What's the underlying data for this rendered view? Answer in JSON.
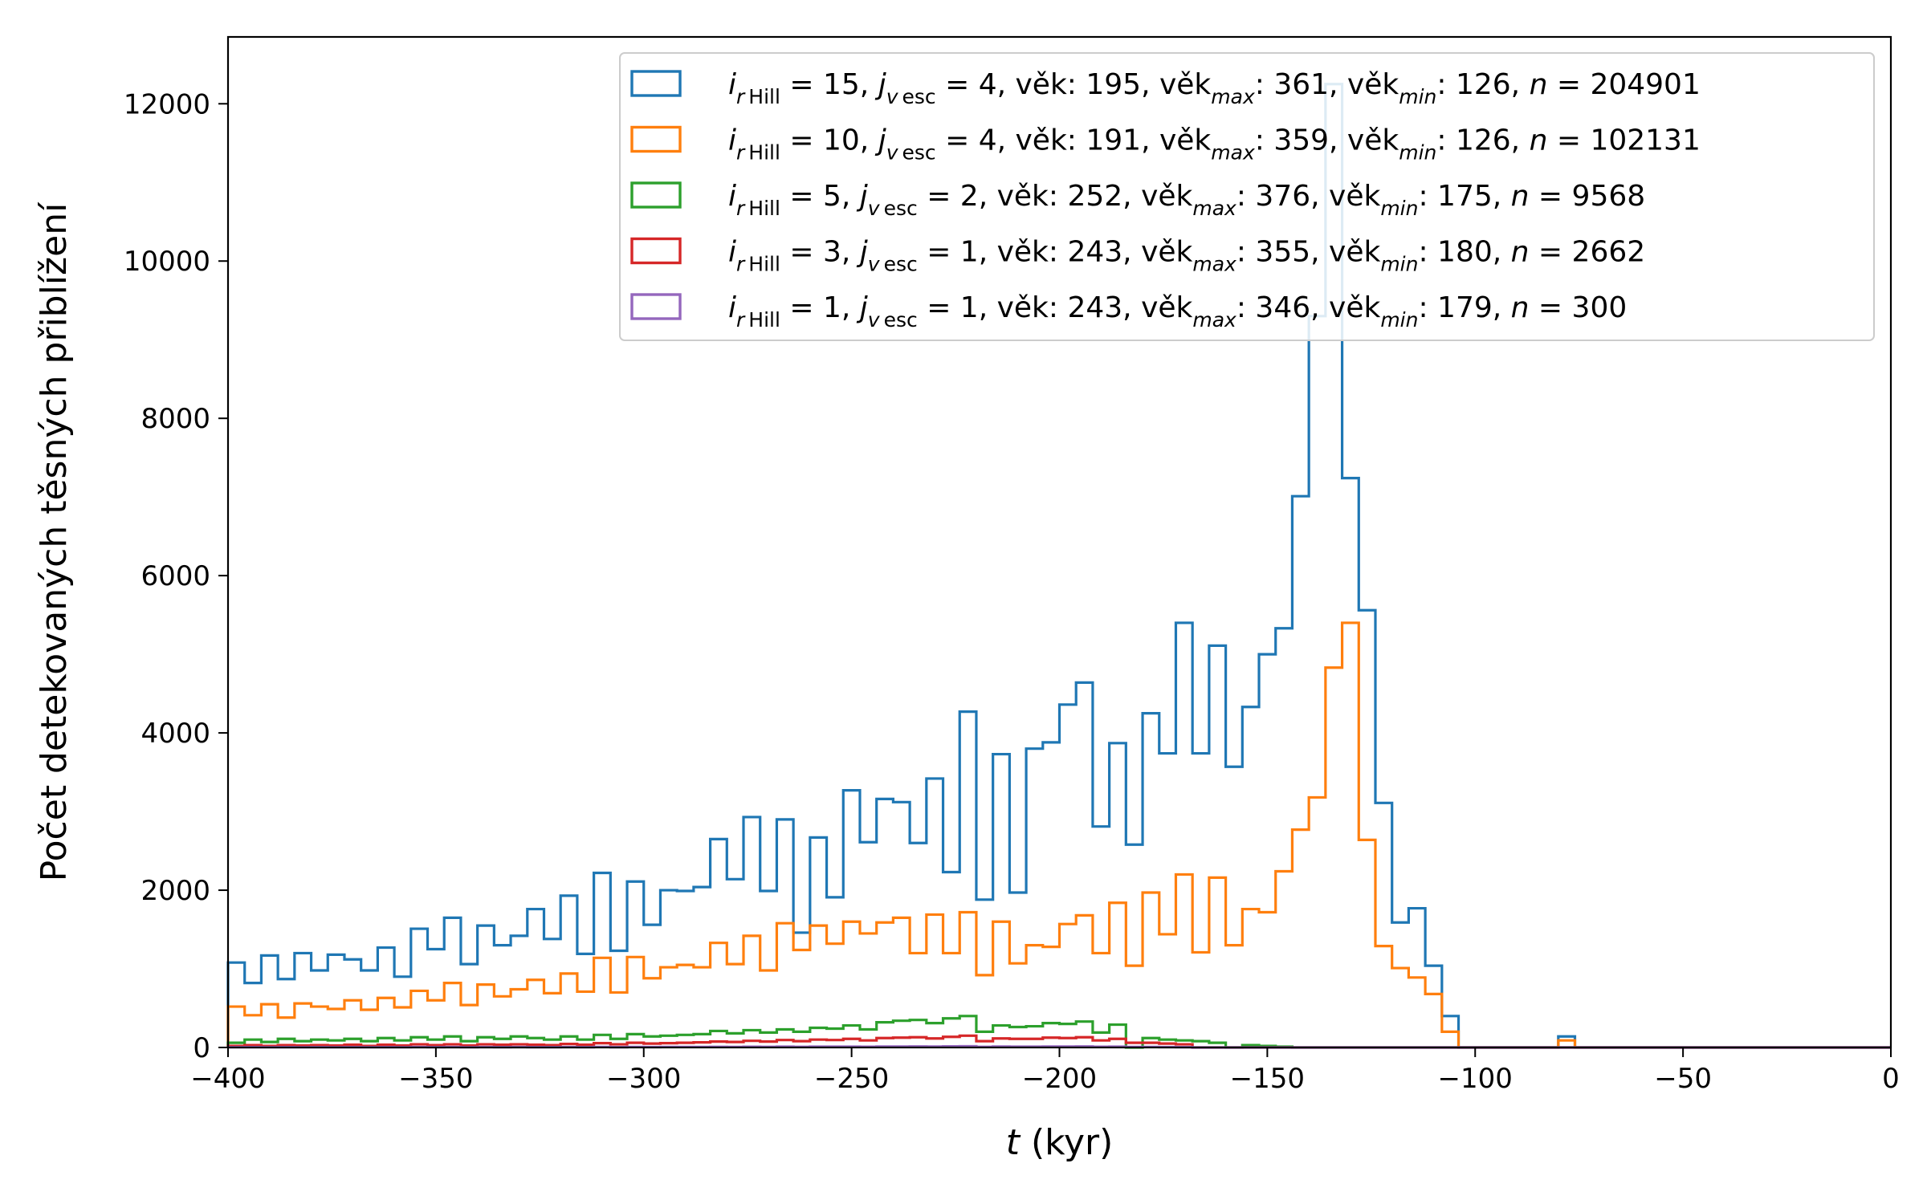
{
  "chart_data": {
    "type": "histogram-step",
    "xlabel": {
      "var": "t",
      "rest": " (kyr)"
    },
    "ylabel": "Počet detekovaných těsných přiblížení",
    "xlim": [
      -400,
      0
    ],
    "ylim": [
      0,
      12850
    ],
    "x_ticks": [
      -400,
      -350,
      -300,
      -250,
      -200,
      -150,
      -100,
      -50,
      0
    ],
    "x_tick_labels": [
      "−400",
      "−350",
      "−300",
      "−250",
      "−200",
      "−150",
      "−100",
      "−50",
      "0"
    ],
    "y_ticks": [
      0,
      2000,
      4000,
      6000,
      8000,
      10000,
      12000
    ],
    "y_tick_labels": [
      "0",
      "2000",
      "4000",
      "6000",
      "8000",
      "10000",
      "12000"
    ],
    "bin_start": -400,
    "bin_width": 4,
    "grid": false,
    "legend_position": "top-right",
    "series": [
      {
        "color": "#1f77b4",
        "legend": {
          "i": "15",
          "j": "4",
          "vek": "195",
          "vek_max": "361",
          "vek_min": "126",
          "n": "204901"
        },
        "values": [
          1080,
          820,
          1170,
          870,
          1200,
          980,
          1180,
          1120,
          980,
          1270,
          900,
          1510,
          1250,
          1650,
          1060,
          1550,
          1300,
          1420,
          1760,
          1380,
          1930,
          1190,
          2220,
          1230,
          2110,
          1560,
          2000,
          1990,
          2040,
          2650,
          2140,
          2930,
          1990,
          2900,
          1460,
          2670,
          1910,
          3270,
          2610,
          3160,
          3120,
          2600,
          3420,
          2230,
          4270,
          1880,
          3730,
          1970,
          3800,
          3880,
          4360,
          4640,
          2810,
          3870,
          2580,
          4250,
          3740,
          5400,
          3740,
          5110,
          3570,
          4330,
          5000,
          5330,
          7010,
          9300,
          12250,
          7240,
          5560,
          3110,
          1590,
          1770,
          1040,
          400,
          0,
          0,
          0,
          0,
          0,
          0,
          140,
          0,
          0,
          0,
          0,
          0,
          0,
          0,
          0,
          0,
          0,
          0,
          0,
          0,
          0,
          0,
          0,
          0,
          0,
          0
        ],
        "label_suffix": "rHill"
      },
      {
        "color": "#ff7f0e",
        "legend": {
          "i": "10",
          "j": "4",
          "vek": "191",
          "vek_max": "359",
          "vek_min": "126",
          "n": "102131"
        },
        "values": [
          520,
          410,
          550,
          380,
          560,
          520,
          490,
          600,
          480,
          630,
          510,
          720,
          600,
          820,
          540,
          800,
          650,
          740,
          860,
          690,
          940,
          710,
          1140,
          700,
          1150,
          880,
          1020,
          1050,
          1020,
          1330,
          1060,
          1420,
          980,
          1580,
          1240,
          1550,
          1320,
          1600,
          1450,
          1590,
          1650,
          1200,
          1690,
          1200,
          1720,
          920,
          1600,
          1070,
          1300,
          1280,
          1570,
          1680,
          1200,
          1840,
          1040,
          1970,
          1440,
          2200,
          1210,
          2160,
          1300,
          1760,
          1720,
          2240,
          2770,
          3180,
          4830,
          5400,
          2640,
          1290,
          1010,
          890,
          680,
          200,
          0,
          0,
          0,
          0,
          0,
          0,
          90,
          0,
          0,
          0,
          0,
          0,
          0,
          0,
          0,
          0,
          0,
          0,
          0,
          0,
          0,
          0,
          0,
          0,
          0,
          0
        ]
      },
      {
        "color": "#2ca02c",
        "legend": {
          "i": " 5",
          "j": "2",
          "vek": "252",
          "vek_max": "376",
          "vek_min": "175",
          "n": "9568"
        },
        "values": [
          60,
          100,
          70,
          110,
          80,
          100,
          90,
          110,
          80,
          120,
          90,
          130,
          100,
          140,
          80,
          130,
          110,
          140,
          120,
          100,
          140,
          100,
          160,
          110,
          170,
          140,
          150,
          160,
          170,
          210,
          180,
          220,
          190,
          230,
          200,
          250,
          240,
          280,
          230,
          320,
          340,
          350,
          310,
          370,
          400,
          200,
          280,
          260,
          270,
          310,
          300,
          330,
          190,
          290,
          0,
          120,
          100,
          90,
          80,
          60,
          0,
          30,
          20,
          10,
          0,
          0,
          0,
          0,
          0,
          0,
          0,
          0,
          0,
          0,
          0,
          0,
          0,
          0,
          0,
          0,
          0,
          0,
          0,
          0,
          0,
          0,
          0,
          0,
          0,
          0,
          0,
          0,
          0,
          0,
          0,
          0,
          0,
          0,
          0,
          0
        ]
      },
      {
        "color": "#d62728",
        "legend": {
          "i": " 3",
          "j": "1",
          "vek": "243",
          "vek_max": "355",
          "vek_min": "180",
          "n": "2662"
        },
        "values": [
          20,
          30,
          20,
          30,
          25,
          30,
          25,
          35,
          20,
          35,
          25,
          40,
          30,
          40,
          25,
          40,
          35,
          40,
          35,
          30,
          45,
          35,
          55,
          40,
          60,
          50,
          55,
          60,
          65,
          75,
          70,
          85,
          75,
          95,
          80,
          100,
          95,
          110,
          90,
          120,
          125,
          130,
          115,
          135,
          150,
          80,
          115,
          110,
          110,
          125,
          120,
          130,
          90,
          110,
          60,
          60,
          50,
          40,
          0,
          0,
          0,
          0,
          0,
          0,
          0,
          0,
          0,
          0,
          0,
          0,
          0,
          0,
          0,
          0,
          0,
          0,
          0,
          0,
          0,
          0,
          0,
          0,
          0,
          0,
          0,
          0,
          0,
          0,
          0,
          0,
          0,
          0,
          0,
          0,
          0,
          0,
          0,
          0,
          0,
          0
        ]
      },
      {
        "color": "#9467bd",
        "legend": {
          "i": " 1",
          "j": "1",
          "vek": "243",
          "vek_max": "346",
          "vek_min": "179",
          "n": "300"
        },
        "values": [
          3,
          4,
          3,
          4,
          3,
          4,
          3,
          4,
          3,
          4,
          3,
          5,
          4,
          5,
          3,
          5,
          4,
          5,
          4,
          4,
          5,
          4,
          6,
          4,
          6,
          5,
          6,
          6,
          7,
          8,
          7,
          9,
          8,
          10,
          8,
          10,
          10,
          11,
          9,
          12,
          12,
          13,
          12,
          14,
          15,
          8,
          12,
          11,
          11,
          12,
          12,
          13,
          9,
          11,
          6,
          6,
          5,
          4,
          0,
          0,
          0,
          0,
          0,
          0,
          0,
          0,
          0,
          0,
          0,
          0,
          0,
          0,
          0,
          0,
          0,
          0,
          0,
          0,
          0,
          0,
          0,
          0,
          0,
          0,
          0,
          0,
          0,
          0,
          0,
          0,
          0,
          0,
          0,
          0,
          0,
          0,
          0,
          0,
          0,
          0
        ]
      }
    ]
  }
}
